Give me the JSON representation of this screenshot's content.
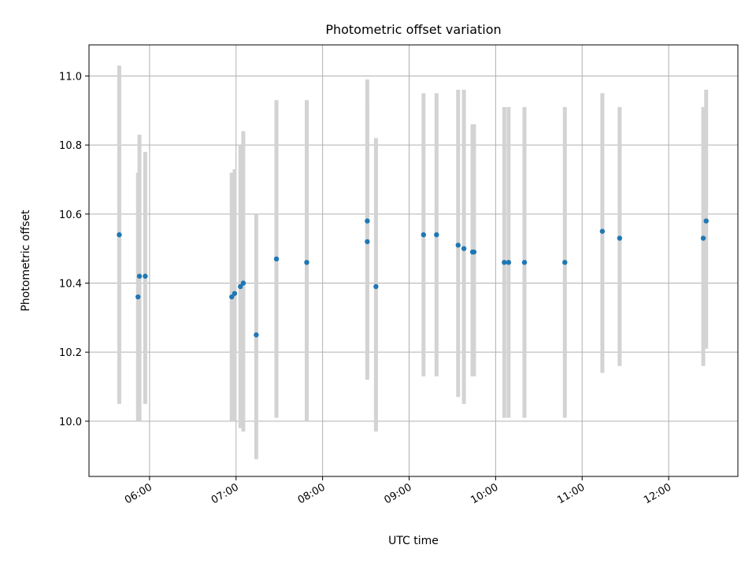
{
  "chart_data": {
    "type": "scatter",
    "title": "Photometric offset variation",
    "xlabel": "UTC time",
    "ylabel": "Photometric offset",
    "xlim": [
      "05:18",
      "12:48"
    ],
    "ylim": [
      9.84,
      11.09
    ],
    "x_ticks": [
      "06:00",
      "07:00",
      "08:00",
      "09:00",
      "10:00",
      "11:00",
      "12:00"
    ],
    "y_ticks": [
      "10.0",
      "10.2",
      "10.4",
      "10.6",
      "10.8",
      "11.0"
    ],
    "grid": true,
    "colors": {
      "points": "#1f77b4",
      "errorbars": "#d3d3d3"
    },
    "points": [
      {
        "x": "05:39",
        "y": 10.54,
        "ylow": 10.05,
        "yhigh": 11.03
      },
      {
        "x": "05:52",
        "y": 10.36,
        "ylow": 10.0,
        "yhigh": 10.72
      },
      {
        "x": "05:53",
        "y": 10.42,
        "ylow": 10.0,
        "yhigh": 10.83
      },
      {
        "x": "05:57",
        "y": 10.42,
        "ylow": 10.05,
        "yhigh": 10.78
      },
      {
        "x": "06:57",
        "y": 10.36,
        "ylow": 10.0,
        "yhigh": 10.72
      },
      {
        "x": "06:59",
        "y": 10.37,
        "ylow": 10.0,
        "yhigh": 10.73
      },
      {
        "x": "07:03",
        "y": 10.39,
        "ylow": 9.98,
        "yhigh": 10.8
      },
      {
        "x": "07:05",
        "y": 10.4,
        "ylow": 9.97,
        "yhigh": 10.84
      },
      {
        "x": "07:14",
        "y": 10.25,
        "ylow": 9.89,
        "yhigh": 10.6
      },
      {
        "x": "07:28",
        "y": 10.47,
        "ylow": 10.01,
        "yhigh": 10.93
      },
      {
        "x": "07:49",
        "y": 10.46,
        "ylow": 10.0,
        "yhigh": 10.93
      },
      {
        "x": "08:31",
        "y": 10.58,
        "ylow": 10.16,
        "yhigh": 10.99
      },
      {
        "x": "08:31",
        "y": 10.52,
        "ylow": 10.12,
        "yhigh": 10.92
      },
      {
        "x": "08:37",
        "y": 10.39,
        "ylow": 9.97,
        "yhigh": 10.82
      },
      {
        "x": "09:10",
        "y": 10.54,
        "ylow": 10.13,
        "yhigh": 10.95
      },
      {
        "x": "09:19",
        "y": 10.54,
        "ylow": 10.13,
        "yhigh": 10.95
      },
      {
        "x": "09:34",
        "y": 10.51,
        "ylow": 10.07,
        "yhigh": 10.96
      },
      {
        "x": "09:38",
        "y": 10.5,
        "ylow": 10.05,
        "yhigh": 10.96
      },
      {
        "x": "09:44",
        "y": 10.49,
        "ylow": 10.13,
        "yhigh": 10.86
      },
      {
        "x": "09:45",
        "y": 10.49,
        "ylow": 10.13,
        "yhigh": 10.86
      },
      {
        "x": "10:06",
        "y": 10.46,
        "ylow": 10.01,
        "yhigh": 10.91
      },
      {
        "x": "10:09",
        "y": 10.46,
        "ylow": 10.01,
        "yhigh": 10.91
      },
      {
        "x": "10:20",
        "y": 10.46,
        "ylow": 10.01,
        "yhigh": 10.91
      },
      {
        "x": "10:48",
        "y": 10.46,
        "ylow": 10.01,
        "yhigh": 10.91
      },
      {
        "x": "11:14",
        "y": 10.55,
        "ylow": 10.14,
        "yhigh": 10.95
      },
      {
        "x": "11:26",
        "y": 10.53,
        "ylow": 10.16,
        "yhigh": 10.91
      },
      {
        "x": "12:24",
        "y": 10.53,
        "ylow": 10.16,
        "yhigh": 10.91
      },
      {
        "x": "12:26",
        "y": 10.58,
        "ylow": 10.21,
        "yhigh": 10.96
      }
    ]
  }
}
